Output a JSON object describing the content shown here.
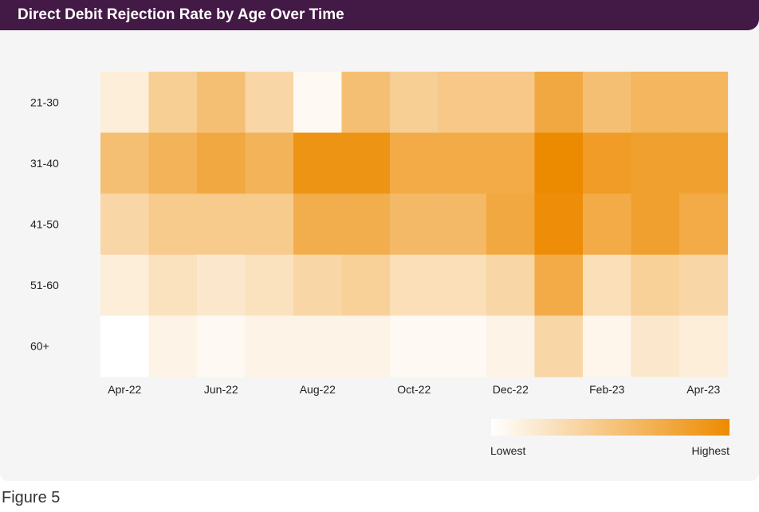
{
  "header": {
    "title": "Direct Debit Rejection Rate by Age Over Time"
  },
  "figure_label": "Figure 5",
  "colors": {
    "low": "#ffffff",
    "high": "#ed8b00",
    "title_bg": "#431945",
    "panel_bg": "#f5f5f5"
  },
  "chart_data": {
    "type": "heatmap",
    "title": "Direct Debit Rejection Rate by Age Over Time",
    "rows": [
      "21-30",
      "31-40",
      "41-50",
      "51-60",
      "60+"
    ],
    "columns": [
      "Apr-22",
      "May-22",
      "Jun-22",
      "Jul-22",
      "Aug-22",
      "Sep-22",
      "Oct-22",
      "Nov-22",
      "Dec-22",
      "Jan-23",
      "Feb-23",
      "Mar-23",
      "Apr-23"
    ],
    "x_tick_labels": [
      "Apr-22",
      "Jun-22",
      "Aug-22",
      "Oct-22",
      "Dec-22",
      "Feb-23",
      "Apr-23"
    ],
    "values_relative": [
      [
        0.15,
        0.42,
        0.55,
        0.35,
        0.05,
        0.55,
        0.42,
        0.47,
        0.47,
        0.75,
        0.55,
        0.63,
        0.63
      ],
      [
        0.55,
        0.65,
        0.75,
        0.65,
        0.92,
        0.92,
        0.72,
        0.72,
        0.72,
        1.0,
        0.85,
        0.82,
        0.82
      ],
      [
        0.35,
        0.45,
        0.45,
        0.45,
        0.7,
        0.7,
        0.6,
        0.6,
        0.75,
        0.97,
        0.72,
        0.82,
        0.72
      ],
      [
        0.15,
        0.25,
        0.2,
        0.25,
        0.35,
        0.4,
        0.28,
        0.28,
        0.35,
        0.72,
        0.28,
        0.4,
        0.35
      ],
      [
        0.0,
        0.1,
        0.05,
        0.1,
        0.1,
        0.1,
        0.05,
        0.05,
        0.1,
        0.35,
        0.08,
        0.2,
        0.15
      ]
    ],
    "legend": {
      "low_label": "Lowest",
      "high_label": "Highest"
    }
  }
}
